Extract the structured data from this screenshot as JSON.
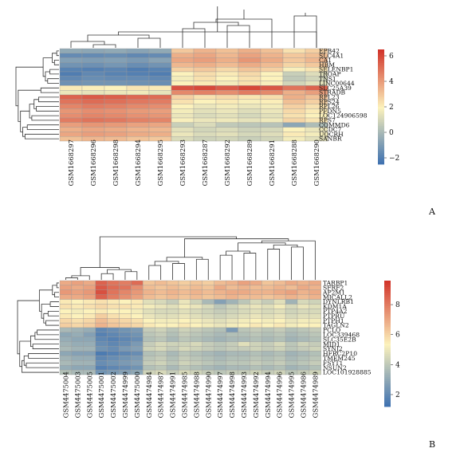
{
  "chart_data": [
    {
      "type": "heatmap",
      "panel": "A",
      "rows": [
        "EPB42",
        "SLC4A1",
        "CA1",
        "HBM",
        "SELENBP1",
        "TROAP",
        "TNS1",
        "LINC00644",
        "SLC25A39",
        "STRADB",
        "RPL23",
        "RPS24",
        "RPL26",
        "PFDN5",
        "LOC124906598",
        "RPS7",
        "COMMD6",
        "CCDC7",
        "UQCRH",
        "SANBR"
      ],
      "columns": [
        "GSM1668297",
        "GSM1668296",
        "GSM1668298",
        "GSM1668294",
        "GSM1668295",
        "GSM1668293",
        "GSM1668287",
        "GSM1668292",
        "GSM1668289",
        "GSM1668291",
        "GSM1668288",
        "GSM1668290"
      ],
      "values": [
        [
          -0.5,
          -0.6,
          -0.5,
          -0.7,
          -0.5,
          3.0,
          3.5,
          3.2,
          3.6,
          3.2,
          2.4,
          2.8
        ],
        [
          -1.5,
          -1.5,
          -1.4,
          -1.6,
          -1.5,
          3.6,
          3.8,
          3.4,
          3.9,
          3.5,
          3.0,
          3.2
        ],
        [
          -0.8,
          -0.9,
          -0.8,
          -1.0,
          -0.7,
          3.8,
          4.0,
          3.6,
          4.2,
          3.7,
          3.0,
          3.4
        ],
        [
          -1.2,
          -1.3,
          -1.1,
          -1.4,
          -1.2,
          3.4,
          3.6,
          3.3,
          3.7,
          3.3,
          2.7,
          3.0
        ],
        [
          -1.8,
          -1.9,
          -1.7,
          -2.0,
          -1.8,
          2.8,
          3.0,
          2.6,
          3.1,
          2.8,
          1.9,
          2.3
        ],
        [
          -2.0,
          -1.6,
          -1.8,
          -1.9,
          -2.0,
          2.0,
          2.5,
          2.2,
          2.6,
          2.0,
          0.8,
          1.3
        ],
        [
          -1.6,
          -1.4,
          -1.5,
          -1.5,
          -1.6,
          1.8,
          2.4,
          2.0,
          2.4,
          2.0,
          0.6,
          1.0
        ],
        [
          -1.3,
          -1.2,
          -1.2,
          -1.3,
          -1.4,
          2.0,
          2.2,
          1.8,
          2.4,
          1.9,
          1.0,
          1.4
        ],
        [
          2.2,
          2.1,
          2.0,
          2.3,
          2.2,
          5.8,
          6.0,
          5.6,
          6.1,
          5.7,
          5.0,
          5.4
        ],
        [
          1.6,
          1.5,
          1.6,
          1.7,
          1.5,
          4.5,
          4.7,
          4.4,
          4.8,
          4.5,
          3.6,
          4.0
        ],
        [
          5.4,
          5.6,
          5.5,
          5.3,
          5.2,
          2.8,
          2.4,
          2.6,
          2.3,
          2.5,
          3.6,
          3.2
        ],
        [
          5.0,
          5.2,
          5.1,
          4.9,
          4.8,
          2.4,
          2.0,
          2.2,
          1.9,
          2.1,
          3.2,
          2.8
        ],
        [
          4.6,
          4.8,
          4.7,
          4.5,
          4.4,
          2.0,
          1.6,
          1.8,
          1.6,
          1.8,
          2.8,
          2.4
        ],
        [
          4.2,
          4.4,
          4.3,
          4.1,
          4.0,
          1.8,
          1.4,
          1.6,
          1.3,
          1.6,
          2.6,
          2.2
        ],
        [
          4.4,
          4.6,
          4.5,
          4.3,
          4.2,
          1.6,
          1.2,
          1.4,
          1.1,
          1.4,
          2.4,
          2.0
        ],
        [
          4.8,
          5.0,
          4.9,
          4.7,
          4.6,
          1.9,
          1.6,
          1.7,
          1.5,
          1.7,
          2.7,
          2.3
        ],
        [
          4.0,
          4.2,
          4.1,
          3.9,
          3.8,
          0.8,
          1.2,
          0.6,
          0.5,
          0.4,
          -0.6,
          0.2
        ],
        [
          3.6,
          3.8,
          3.7,
          3.5,
          3.4,
          1.4,
          1.0,
          1.2,
          0.9,
          1.1,
          2.0,
          1.6
        ],
        [
          3.8,
          4.0,
          3.9,
          3.7,
          3.6,
          1.6,
          1.2,
          1.4,
          1.1,
          1.3,
          2.2,
          1.8
        ],
        [
          3.2,
          3.4,
          3.3,
          3.1,
          3.0,
          1.2,
          0.9,
          1.0,
          0.8,
          1.0,
          1.8,
          1.4
        ]
      ],
      "color_scale": {
        "min": -2.5,
        "max": 6.5,
        "ticks": [
          -2,
          0,
          2,
          4,
          6
        ],
        "low_color": "#3a6eb0",
        "mid_color": "#fcf2bc",
        "high_color": "#d2352b"
      }
    },
    {
      "type": "heatmap",
      "panel": "B",
      "rows": [
        "TARBP1",
        "SFRF2",
        "AP2M1",
        "MICALL2",
        "DYNLRB1",
        "KDM1A",
        "PTP4A2",
        "PTPRU",
        "PTPH1",
        "TAGLN2",
        "PCLO",
        "LOC339468",
        "SLC35E2B",
        "MID1",
        "SYNJ2",
        "HFRC2P10",
        "TMEM245",
        "FSYT1",
        "NSUN2",
        "LOC101928885"
      ],
      "columns": [
        "GSM4475004",
        "GSM4475003",
        "GSM4475005",
        "GSM4475001",
        "GSM4475002",
        "GSM4474999",
        "GSM4475000",
        "GSM4474984",
        "GSM4474987",
        "GSM4474991",
        "GSM4474985",
        "GSM4474988",
        "GSM4474990",
        "GSM4474997",
        "GSM4474998",
        "GSM4474993",
        "GSM4474992",
        "GSM4474994",
        "GSM4474996",
        "GSM4474995",
        "GSM4474986",
        "GSM4474989"
      ],
      "values": [
        [
          7.0,
          7.2,
          7.0,
          8.6,
          8.2,
          8.0,
          8.4,
          6.4,
          6.6,
          6.4,
          6.2,
          6.4,
          6.2,
          6.6,
          6.8,
          7.2,
          7.0,
          6.4,
          6.6,
          7.0,
          6.8,
          7.0
        ],
        [
          7.2,
          7.0,
          7.2,
          8.8,
          8.4,
          8.2,
          7.6,
          6.6,
          6.4,
          6.6,
          6.4,
          6.6,
          6.4,
          7.0,
          6.6,
          6.8,
          6.6,
          6.6,
          6.8,
          6.6,
          7.0,
          6.8
        ],
        [
          7.4,
          7.2,
          7.4,
          9.0,
          8.2,
          7.8,
          7.4,
          6.8,
          6.6,
          6.8,
          6.6,
          6.8,
          6.6,
          6.8,
          7.0,
          7.0,
          6.8,
          6.8,
          7.0,
          7.2,
          6.8,
          7.0
        ],
        [
          7.0,
          7.0,
          7.2,
          8.6,
          8.0,
          7.6,
          7.2,
          6.6,
          6.4,
          6.6,
          6.4,
          6.6,
          6.4,
          6.6,
          6.8,
          6.6,
          6.6,
          6.4,
          6.6,
          6.8,
          6.6,
          6.8
        ],
        [
          5.6,
          5.4,
          5.6,
          5.8,
          5.6,
          5.4,
          5.6,
          4.8,
          4.6,
          4.2,
          5.0,
          4.4,
          3.6,
          2.8,
          3.4,
          4.0,
          4.6,
          4.2,
          4.8,
          3.4,
          4.6,
          4.4
        ],
        [
          5.8,
          5.6,
          5.8,
          6.0,
          5.8,
          5.8,
          5.6,
          5.2,
          5.0,
          4.8,
          5.2,
          5.0,
          4.6,
          4.0,
          4.4,
          4.8,
          5.0,
          4.8,
          5.2,
          4.6,
          5.0,
          4.8
        ],
        [
          5.4,
          5.2,
          5.4,
          5.6,
          5.4,
          5.4,
          5.2,
          4.8,
          4.6,
          4.6,
          4.8,
          4.6,
          4.4,
          4.2,
          4.4,
          4.6,
          4.8,
          4.6,
          4.8,
          4.4,
          4.6,
          4.6
        ],
        [
          5.6,
          5.4,
          5.6,
          6.2,
          5.8,
          5.6,
          5.4,
          5.0,
          4.8,
          4.8,
          5.0,
          4.8,
          4.6,
          4.4,
          4.6,
          4.8,
          5.0,
          4.8,
          5.0,
          4.6,
          4.8,
          4.8
        ],
        [
          6.0,
          5.8,
          6.0,
          6.6,
          6.2,
          6.0,
          5.8,
          5.4,
          5.2,
          5.2,
          5.4,
          5.2,
          5.0,
          4.8,
          5.0,
          5.2,
          5.4,
          5.2,
          5.4,
          5.0,
          5.2,
          5.2
        ],
        [
          6.2,
          6.0,
          6.2,
          6.8,
          6.4,
          6.2,
          6.0,
          5.6,
          5.4,
          5.4,
          5.6,
          5.4,
          5.2,
          5.0,
          5.2,
          5.4,
          5.6,
          5.4,
          5.6,
          5.2,
          5.4,
          5.4
        ],
        [
          3.6,
          3.4,
          3.2,
          2.0,
          2.2,
          2.4,
          2.6,
          4.2,
          4.4,
          4.0,
          4.4,
          4.2,
          4.0,
          3.8,
          2.6,
          4.0,
          4.2,
          4.0,
          4.2,
          3.8,
          4.0,
          4.2
        ],
        [
          3.0,
          3.2,
          2.8,
          1.8,
          2.0,
          2.2,
          2.4,
          4.0,
          4.2,
          3.8,
          4.2,
          4.0,
          3.8,
          3.6,
          3.8,
          3.8,
          4.0,
          3.8,
          4.0,
          3.6,
          3.8,
          4.0
        ],
        [
          3.2,
          3.0,
          3.0,
          2.0,
          1.8,
          2.0,
          2.2,
          3.8,
          4.0,
          3.6,
          4.0,
          3.8,
          3.6,
          3.4,
          3.6,
          3.6,
          3.8,
          3.6,
          3.8,
          3.4,
          3.6,
          3.8
        ],
        [
          3.4,
          3.2,
          3.2,
          2.2,
          2.0,
          2.2,
          2.6,
          4.2,
          4.6,
          4.4,
          4.4,
          4.6,
          4.2,
          4.0,
          4.2,
          4.8,
          4.4,
          4.2,
          4.6,
          4.0,
          4.4,
          4.2
        ],
        [
          3.6,
          3.4,
          3.4,
          2.4,
          2.2,
          2.6,
          2.8,
          4.4,
          4.6,
          4.2,
          4.6,
          4.4,
          4.2,
          4.0,
          4.2,
          4.2,
          4.4,
          4.2,
          4.4,
          4.0,
          4.2,
          4.4
        ],
        [
          3.0,
          2.8,
          2.8,
          1.6,
          1.8,
          2.0,
          2.2,
          3.8,
          4.0,
          3.6,
          4.0,
          3.8,
          3.6,
          3.4,
          3.6,
          3.6,
          3.8,
          3.6,
          3.8,
          3.4,
          3.6,
          3.8
        ],
        [
          3.4,
          3.2,
          3.2,
          2.0,
          2.2,
          2.4,
          2.6,
          4.0,
          4.2,
          3.8,
          4.2,
          4.0,
          3.8,
          3.6,
          3.8,
          3.8,
          4.0,
          3.8,
          4.0,
          3.6,
          3.8,
          4.0
        ],
        [
          3.6,
          3.4,
          3.4,
          2.2,
          2.4,
          2.6,
          2.8,
          4.2,
          4.4,
          4.0,
          4.4,
          4.2,
          4.0,
          3.8,
          4.0,
          4.0,
          4.2,
          4.0,
          4.2,
          3.8,
          4.0,
          4.2
        ],
        [
          3.2,
          3.0,
          3.0,
          1.8,
          2.0,
          2.2,
          2.4,
          3.8,
          4.0,
          3.6,
          4.0,
          3.8,
          3.6,
          3.4,
          3.6,
          3.6,
          3.8,
          3.6,
          3.8,
          3.4,
          3.6,
          3.8
        ],
        [
          3.8,
          3.6,
          3.6,
          2.4,
          2.6,
          2.8,
          3.0,
          4.4,
          4.6,
          4.2,
          4.6,
          4.4,
          4.2,
          4.0,
          4.2,
          4.2,
          4.4,
          4.2,
          4.4,
          4.0,
          4.2,
          4.4
        ]
      ],
      "color_scale": {
        "min": 1.2,
        "max": 9.6,
        "ticks": [
          2,
          4,
          6,
          8
        ],
        "low_color": "#3a6eb0",
        "mid_color": "#fcf2bc",
        "high_color": "#d2352b"
      }
    }
  ],
  "panel_labels": {
    "a": "A",
    "b": "B"
  }
}
